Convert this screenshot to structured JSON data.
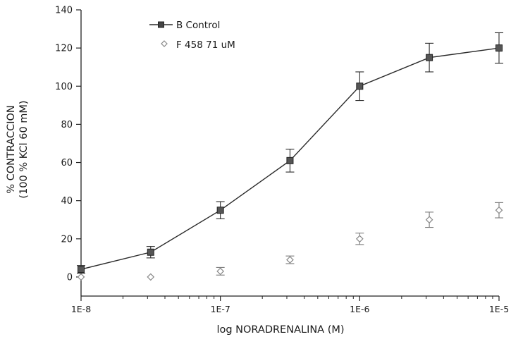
{
  "chart_data": {
    "type": "line",
    "xlabel": "log  NORADRENALINA (M)",
    "ylabel_line1": "% CONTRACCION",
    "ylabel_line2": "(100 % KCl 60 mM)",
    "x_scale": "log",
    "x_range": [
      1e-08,
      1e-05
    ],
    "y_range": [
      -10,
      140
    ],
    "x_tick_labels": [
      "1E-8",
      "1E-7",
      "1E-6",
      "1E-5"
    ],
    "y_tick_labels": [
      "0",
      "20",
      "40",
      "60",
      "80",
      "100",
      "120",
      "140"
    ],
    "grid": false,
    "legend_position": "top-left",
    "series": [
      {
        "name": "B Control",
        "marker": "filled-square",
        "line": true,
        "color": "#2a2a2a",
        "x": [
          1e-08,
          3.16e-08,
          1e-07,
          3.16e-07,
          1e-06,
          3.16e-06,
          1e-05
        ],
        "y": [
          4,
          13,
          35,
          61,
          100,
          115,
          120
        ],
        "err": [
          2,
          3,
          4.5,
          6,
          7.5,
          7.5,
          8
        ]
      },
      {
        "name": "F 458 71 uM",
        "marker": "open-diamond",
        "line": false,
        "color": "#7a7a7a",
        "x": [
          1e-08,
          3.16e-08,
          1e-07,
          3.16e-07,
          1e-06,
          3.16e-06,
          1e-05
        ],
        "y": [
          0,
          0,
          3,
          9,
          20,
          30,
          35
        ],
        "err": [
          0,
          0,
          2,
          2,
          3,
          4,
          4
        ]
      }
    ]
  }
}
